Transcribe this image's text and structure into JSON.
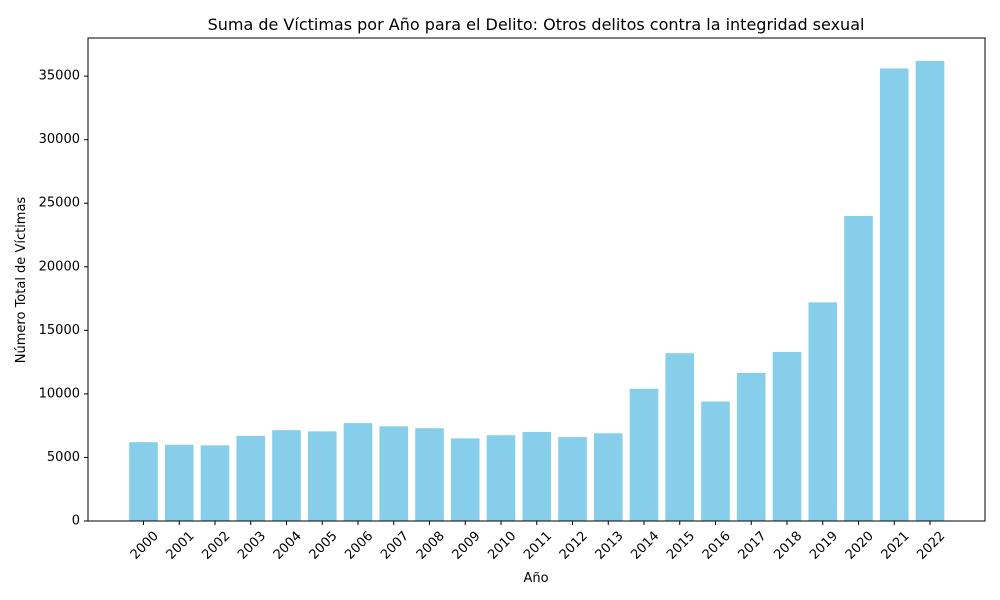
{
  "chart_data": {
    "type": "bar",
    "title": "Suma de Víctimas por Año para el Delito: Otros delitos contra la integridad sexual",
    "xlabel": "Año",
    "ylabel": "Número Total de Víctimas",
    "categories": [
      "2000",
      "2001",
      "2002",
      "2003",
      "2004",
      "2005",
      "2006",
      "2007",
      "2008",
      "2009",
      "2010",
      "2011",
      "2012",
      "2013",
      "2014",
      "2015",
      "2016",
      "2017",
      "2018",
      "2019",
      "2020",
      "2021",
      "2022"
    ],
    "values": [
      6200,
      6000,
      5950,
      6700,
      7150,
      7050,
      7700,
      7450,
      7300,
      6500,
      6750,
      7000,
      6600,
      6900,
      10400,
      13200,
      9400,
      11650,
      13300,
      17200,
      24000,
      35600,
      36200
    ],
    "ylim": [
      0,
      38000
    ],
    "yticks": [
      0,
      5000,
      10000,
      15000,
      20000,
      25000,
      30000,
      35000
    ],
    "bar_color": "#87ceeb",
    "grid": false,
    "legend": "none"
  }
}
